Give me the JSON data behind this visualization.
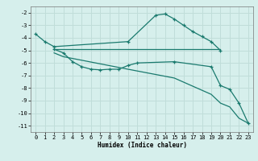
{
  "xlabel": "Humidex (Indice chaleur)",
  "bg_color": "#d6efec",
  "grid_color": "#c0ddd9",
  "line_color": "#1a7a6e",
  "xlim": [
    -0.5,
    23.5
  ],
  "ylim": [
    -11.5,
    -1.5
  ],
  "xticks": [
    0,
    1,
    2,
    3,
    4,
    5,
    6,
    7,
    8,
    9,
    10,
    11,
    12,
    13,
    14,
    15,
    16,
    17,
    18,
    19,
    20,
    21,
    22,
    23
  ],
  "yticks": [
    -11,
    -10,
    -9,
    -8,
    -7,
    -6,
    -5,
    -4,
    -3,
    -2
  ],
  "lines": [
    {
      "x": [
        0,
        1,
        2,
        10,
        13,
        14,
        15,
        16,
        17,
        18,
        19,
        20
      ],
      "y": [
        -3.7,
        -4.3,
        -4.7,
        -4.3,
        -2.2,
        -2.1,
        -2.5,
        -3.0,
        -3.5,
        -3.9,
        -4.3,
        -5.0
      ],
      "marker": true
    },
    {
      "x": [
        2,
        3,
        10,
        19,
        20
      ],
      "y": [
        -4.9,
        -4.9,
        -4.9,
        -4.9,
        -4.9
      ],
      "marker": false
    },
    {
      "x": [
        2,
        3,
        4,
        5,
        6,
        7,
        8,
        9,
        10,
        11,
        15,
        19,
        20,
        21,
        22,
        23
      ],
      "y": [
        -4.9,
        -5.2,
        -5.9,
        -6.3,
        -6.5,
        -6.55,
        -6.5,
        -6.5,
        -6.2,
        -6.0,
        -5.9,
        -6.3,
        -7.8,
        -8.1,
        -9.2,
        -10.8
      ],
      "marker": true
    },
    {
      "x": [
        2,
        3,
        10,
        15,
        19,
        20,
        21,
        22,
        23
      ],
      "y": [
        -5.2,
        -5.5,
        -6.5,
        -7.2,
        -8.5,
        -9.2,
        -9.5,
        -10.4,
        -10.8
      ],
      "marker": false
    }
  ]
}
